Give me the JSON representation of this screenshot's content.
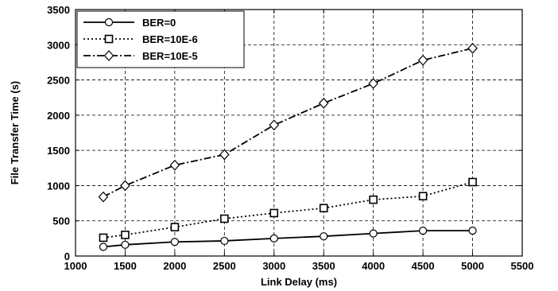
{
  "chart_data": {
    "type": "line",
    "title": "",
    "xlabel": "Link Delay (ms)",
    "ylabel": "File Transfer Time (s)",
    "xlim": [
      1000,
      5500
    ],
    "ylim": [
      0,
      3500
    ],
    "xticks": [
      1000,
      1500,
      2000,
      2500,
      3000,
      3500,
      4000,
      4500,
      5000,
      5500
    ],
    "yticks": [
      0,
      500,
      1000,
      1500,
      2000,
      2500,
      3000,
      3500
    ],
    "grid": true,
    "legend_position": "top-left",
    "x": [
      1280,
      1500,
      2000,
      2500,
      3000,
      3500,
      4000,
      4500,
      5000
    ],
    "series": [
      {
        "name": "BER=0",
        "marker": "circle",
        "line_style": "solid",
        "values": [
          130,
          160,
          200,
          215,
          250,
          280,
          320,
          360,
          360
        ]
      },
      {
        "name": "BER=10E-6",
        "marker": "square",
        "line_style": "dotted",
        "values": [
          260,
          300,
          410,
          530,
          610,
          680,
          800,
          850,
          1050
        ]
      },
      {
        "name": "BER=10E-5",
        "marker": "diamond",
        "line_style": "dashdot",
        "values": [
          840,
          1000,
          1290,
          1440,
          1860,
          2170,
          2450,
          2780,
          2950
        ]
      }
    ]
  }
}
